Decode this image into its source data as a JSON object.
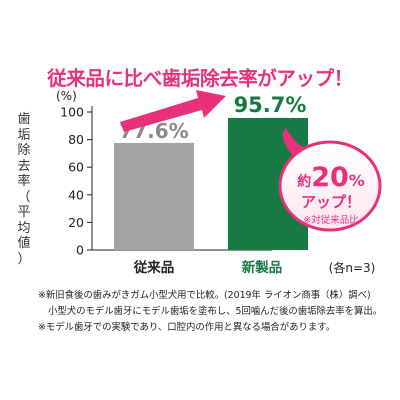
{
  "headline": "従来品に比べ歯垢除去率がアップ！",
  "chart_data": {
    "type": "bar",
    "categories": [
      "従来品",
      "新製品"
    ],
    "values": [
      77.6,
      95.7
    ],
    "value_labels": [
      "77.6%",
      "95.7%"
    ],
    "y_unit": "(%)",
    "ylabel": "歯垢除去率（平均値）",
    "ylim": [
      0,
      100
    ],
    "yticks": [
      "0",
      "20",
      "40",
      "60",
      "80",
      "100"
    ],
    "n_note": "(各n=3)",
    "grid": false,
    "colors": {
      "old": "#a3a3a3",
      "new": "#177a45",
      "accent": "#e8317a"
    }
  },
  "callout": {
    "prefix": "約",
    "number": "20",
    "percent": "%",
    "line2": "アップ！",
    "note": "※対従来品比"
  },
  "footnotes": [
    "※新旧食後の歯みがきガム小型犬用で比較。(2019年 ライオン商事（株）調べ)",
    "小型犬のモデル歯牙にモデル歯垢を塗布し、5回噛んだ後の歯垢除去率を算出。",
    "※モデル歯牙での実験であり、口腔内の作用と異なる場合があります。"
  ]
}
